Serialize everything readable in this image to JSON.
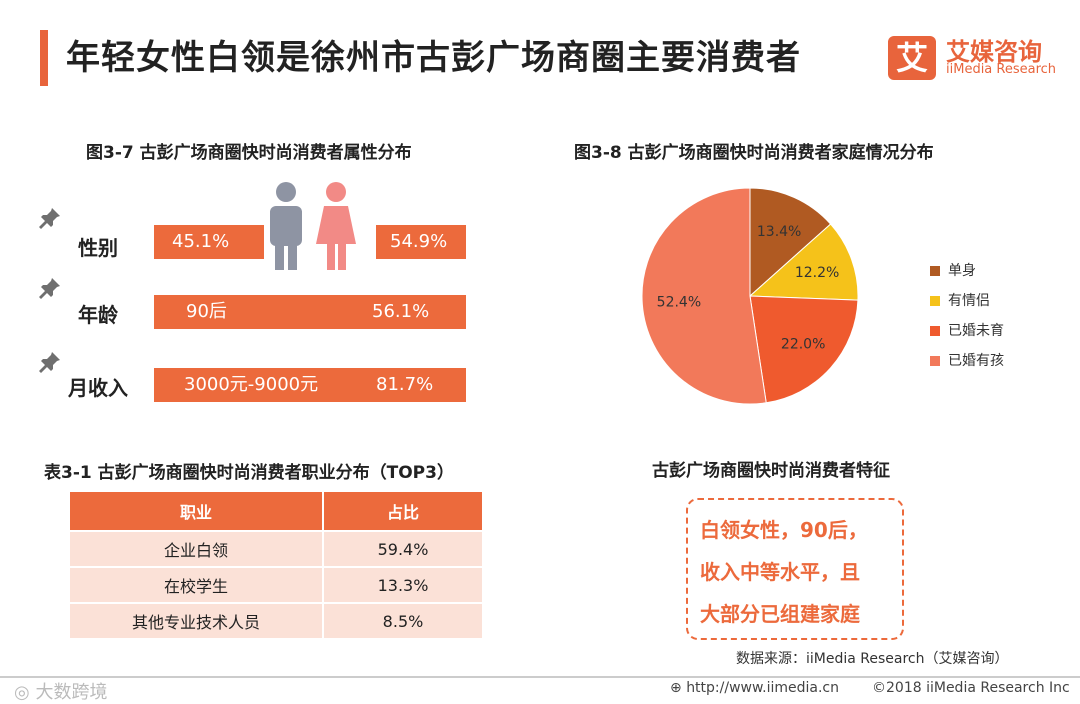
{
  "page": {
    "title": "年轻女性白领是徐州市古彭广场商圈主要消费者",
    "logo_mark": "艾",
    "logo_cn": "艾媒咨询",
    "logo_en": "iiMedia Research"
  },
  "attributes": {
    "title": "图3-7 古彭广场商圈快时尚消费者属性分布",
    "gender": {
      "label": "性别",
      "male_pct": "45.1%",
      "female_pct": "54.9%"
    },
    "age": {
      "label": "年龄",
      "value": "90后",
      "pct": "56.1%"
    },
    "income": {
      "label": "月收入",
      "value": "3000元-9000元",
      "pct": "81.7%"
    }
  },
  "occupation": {
    "title": "表3-1 古彭广场商圈快时尚消费者职业分布（TOP3）",
    "headers": [
      "职业",
      "占比"
    ],
    "rows": [
      [
        "企业白领",
        "59.4%"
      ],
      [
        "在校学生",
        "13.3%"
      ],
      [
        "其他专业技术人员",
        "8.5%"
      ]
    ]
  },
  "chart_data": {
    "type": "pie",
    "title": "图3-8 古彭广场商圈快时尚消费者家庭情况分布",
    "slices": [
      {
        "label": "单身",
        "value": 13.4,
        "display": "13.4%",
        "color": "#b05a22"
      },
      {
        "label": "有情侣",
        "value": 12.2,
        "display": "12.2%",
        "color": "#f5c21a"
      },
      {
        "label": "已婚未育",
        "value": 22.0,
        "display": "22.0%",
        "color": "#ef5a2e"
      },
      {
        "label": "已婚有孩",
        "value": 52.4,
        "display": "52.4%",
        "color": "#f2795a"
      }
    ],
    "legend_position": "right"
  },
  "features": {
    "title": "古彭广场商圈快时尚消费者特征",
    "lines": [
      "白领女性，90后，",
      "收入中等水平，且",
      "大部分已组建家庭"
    ]
  },
  "footer": {
    "source": "数据来源：iiMedia Research（艾媒咨询）",
    "url": "http://www.iimedia.cn",
    "copyright": "©2018 iiMedia Research Inc",
    "watermark": "大数跨境"
  }
}
